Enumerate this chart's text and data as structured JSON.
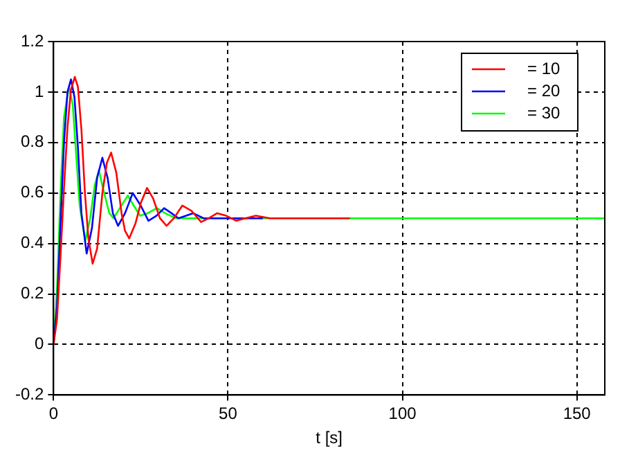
{
  "chart_data": {
    "type": "line",
    "xlabel": "t [s]",
    "xlim": [
      0,
      158
    ],
    "xticks": [
      0,
      50,
      100,
      150
    ],
    "ylim": [
      -0.2,
      1.2
    ],
    "yticks": [
      -0.2,
      0,
      0.2,
      0.4,
      0.6,
      0.8,
      1,
      1.2
    ],
    "grid": true,
    "legend": "top right",
    "marker": "none",
    "line_style": "solid",
    "series": [
      {
        "name": "= 10",
        "color": "#ff0000",
        "x": [
          0,
          1,
          2,
          3,
          4,
          5,
          6.1,
          7,
          8,
          9,
          10,
          11.2,
          12.5,
          14,
          15.3,
          16.5,
          18,
          19.5,
          20.5,
          21.7,
          23.5,
          25,
          26.8,
          28.5,
          30.5,
          32.4,
          34.5,
          36.9,
          39.5,
          42.3,
          44.5,
          46.9,
          49.5,
          52.4,
          55,
          58,
          62,
          66,
          70,
          75,
          80,
          85
        ],
        "values": [
          0,
          0.1,
          0.35,
          0.62,
          0.86,
          1.01,
          1.06,
          1.02,
          0.85,
          0.6,
          0.42,
          0.32,
          0.38,
          0.6,
          0.72,
          0.76,
          0.68,
          0.52,
          0.45,
          0.42,
          0.48,
          0.56,
          0.62,
          0.58,
          0.5,
          0.47,
          0.5,
          0.55,
          0.53,
          0.485,
          0.5,
          0.52,
          0.51,
          0.49,
          0.5,
          0.51,
          0.5,
          0.5,
          0.5,
          0.5,
          0.5,
          0.5
        ]
      },
      {
        "name": "= 20",
        "color": "#0000ff",
        "x": [
          0,
          1,
          2,
          3,
          4,
          5,
          6,
          7,
          8,
          9.5,
          11,
          12.5,
          14,
          15.5,
          17,
          18.5,
          20.5,
          22.7,
          25,
          27.2,
          29.5,
          31.7,
          33.8,
          35.8,
          38,
          40,
          43,
          46,
          50,
          55,
          60
        ],
        "values": [
          0,
          0.15,
          0.48,
          0.8,
          1,
          1.05,
          0.98,
          0.78,
          0.52,
          0.36,
          0.46,
          0.66,
          0.74,
          0.66,
          0.52,
          0.47,
          0.52,
          0.6,
          0.55,
          0.49,
          0.51,
          0.54,
          0.52,
          0.5,
          0.51,
          0.52,
          0.5,
          0.5,
          0.5,
          0.5,
          0.5
        ]
      },
      {
        "name": "= 30",
        "color": "#00ff00",
        "x": [
          0,
          1,
          2,
          3,
          4.4,
          5.5,
          6.5,
          7.5,
          9.1,
          10.5,
          11.8,
          13,
          14.5,
          16,
          17.2,
          19,
          21.3,
          23,
          24.8,
          27,
          29.6,
          32,
          35,
          40,
          60,
          100,
          120,
          140,
          158
        ],
        "values": [
          0,
          0.22,
          0.6,
          0.9,
          1.02,
          0.95,
          0.75,
          0.55,
          0.41,
          0.5,
          0.63,
          0.69,
          0.6,
          0.52,
          0.5,
          0.54,
          0.59,
          0.55,
          0.51,
          0.52,
          0.54,
          0.52,
          0.5,
          0.5,
          0.5,
          0.5,
          0.5,
          0.5,
          0.5
        ]
      }
    ]
  }
}
